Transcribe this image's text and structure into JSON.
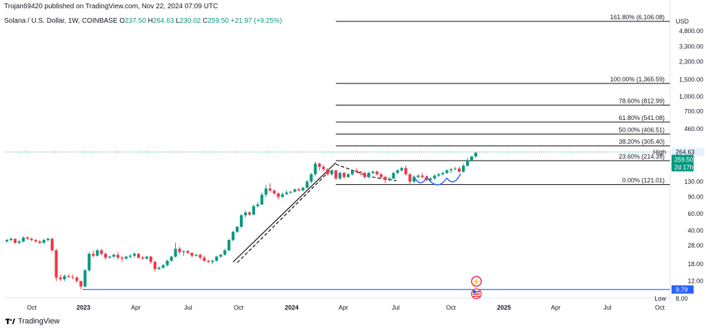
{
  "publisher": "Trojan69420 published on TradingView.com, Nov 22, 2024 07:09 UTC",
  "footer": {
    "brand": "TradingView"
  },
  "symbol": {
    "title": "Solana / U.S. Dollar, 1W, COINBASE",
    "o_label": "O",
    "o": "237.50",
    "h_label": "H",
    "h": "264.63",
    "l_label": "L",
    "l": "230.02",
    "c_label": "C",
    "c": "259.50",
    "change": "+21.97 (+9.25%)"
  },
  "colors": {
    "up": "#089981",
    "down": "#f23645",
    "fib": "#000000",
    "low_line": "#2962ff",
    "badge": "#089981"
  },
  "chart_data": {
    "type": "candlestick",
    "currency": "USD",
    "x_labels": [
      "Oct",
      "2023",
      "Apr",
      "Jul",
      "Oct",
      "2024",
      "Apr",
      "Jul",
      "Oct",
      "2025",
      "Apr",
      "Jul",
      "Oct"
    ],
    "y_ticks": [
      "4,800.00",
      "3,300.00",
      "2,300.00",
      "1,500.00",
      "1,000.00",
      "700.00",
      "460.00",
      "130.00",
      "90.00",
      "60.00",
      "40.00",
      "28.00",
      "18.00",
      "12.00",
      "8.00"
    ],
    "y_tick_values": [
      4800,
      3300,
      2300,
      1500,
      1000,
      700,
      460,
      130,
      90,
      60,
      40,
      28,
      18,
      12,
      8
    ],
    "log_scale": true,
    "ylim": [
      8,
      7000
    ],
    "fib_levels": [
      {
        "label": "161.80% (6,106.08)",
        "value": 6106.08
      },
      {
        "label": "100.00% (1,365.59)",
        "value": 1365.59
      },
      {
        "label": "78.60% (812.99)",
        "value": 812.99
      },
      {
        "label": "61.80% (541.08)",
        "value": 541.08
      },
      {
        "label": "50.00% (406.51)",
        "value": 406.51
      },
      {
        "label": "38.20% (305.40)",
        "value": 305.4
      },
      {
        "label": "23.60% (214.39)",
        "value": 214.39
      },
      {
        "label": "0.00% (121.01)",
        "value": 121.01
      }
    ],
    "high": {
      "label": "High",
      "value": 264.63,
      "display": "264.63"
    },
    "last": {
      "price": "259.50",
      "countdown": "2d 17h",
      "value": 259.5
    },
    "low": {
      "label": "Low",
      "value": 8.0,
      "line_value": 9.79,
      "line_label": "9.79"
    },
    "candles": [
      [
        31,
        33,
        30,
        32
      ],
      [
        32,
        34,
        31,
        33
      ],
      [
        33,
        33,
        29,
        30
      ],
      [
        30,
        32,
        29,
        31
      ],
      [
        31,
        35,
        30,
        34
      ],
      [
        34,
        35,
        32,
        33
      ],
      [
        33,
        34,
        31,
        32
      ],
      [
        32,
        33,
        30,
        31
      ],
      [
        31,
        32,
        29,
        30
      ],
      [
        30,
        33,
        29,
        32
      ],
      [
        32,
        34,
        31,
        33
      ],
      [
        33,
        34,
        24,
        25
      ],
      [
        25,
        26,
        12,
        13
      ],
      [
        13,
        14,
        12,
        12.5
      ],
      [
        12.5,
        14,
        12,
        13.5
      ],
      [
        13.5,
        14,
        13,
        13.2
      ],
      [
        13.2,
        14,
        12.5,
        13
      ],
      [
        13,
        13.5,
        11.5,
        12
      ],
      [
        12,
        12,
        9.8,
        10.5
      ],
      [
        10.5,
        16,
        10.3,
        15.5
      ],
      [
        15.5,
        24,
        15,
        23
      ],
      [
        23,
        25,
        21,
        22
      ],
      [
        22,
        26,
        21.5,
        25
      ],
      [
        25,
        26,
        22,
        23
      ],
      [
        23,
        24,
        20,
        21
      ],
      [
        21,
        22,
        20.5,
        21.5
      ],
      [
        21.5,
        23,
        21,
        22.5
      ],
      [
        22.5,
        24,
        20,
        21
      ],
      [
        21,
        22,
        19,
        20.5
      ],
      [
        20.5,
        22,
        20,
        21.5
      ],
      [
        21.5,
        23,
        20.5,
        22
      ],
      [
        22,
        24,
        21,
        23
      ],
      [
        23,
        23.5,
        20.5,
        21
      ],
      [
        21,
        22,
        20,
        20.5
      ],
      [
        20.5,
        22,
        20,
        21.5
      ],
      [
        21.5,
        22,
        18,
        19
      ],
      [
        19,
        19.5,
        15,
        16
      ],
      [
        16,
        17,
        15.5,
        16.5
      ],
      [
        16.5,
        18,
        16,
        17.5
      ],
      [
        17.5,
        20,
        17,
        19.5
      ],
      [
        19.5,
        22,
        19,
        21.5
      ],
      [
        21.5,
        30,
        21,
        26
      ],
      [
        26,
        27,
        23,
        24
      ],
      [
        24,
        25,
        22,
        24.5
      ],
      [
        24.5,
        25.5,
        23,
        23.5
      ],
      [
        23.5,
        24,
        21,
        22
      ],
      [
        22,
        23,
        21.5,
        22.5
      ],
      [
        22.5,
        23,
        20,
        21
      ],
      [
        21,
        22,
        19,
        19.5
      ],
      [
        19.5,
        20,
        18.5,
        19
      ],
      [
        19,
        20,
        18,
        19.5
      ],
      [
        19.5,
        22,
        19,
        21.5
      ],
      [
        21.5,
        23,
        21,
        22.5
      ],
      [
        22.5,
        26,
        22,
        25
      ],
      [
        25,
        33,
        24.5,
        32
      ],
      [
        32,
        40,
        31,
        39
      ],
      [
        39,
        45,
        38,
        44
      ],
      [
        44,
        60,
        43,
        58
      ],
      [
        58,
        65,
        55,
        62
      ],
      [
        62,
        64,
        57,
        59
      ],
      [
        59,
        75,
        58,
        72
      ],
      [
        72,
        80,
        70,
        75
      ],
      [
        75,
        100,
        74,
        95
      ],
      [
        95,
        120,
        90,
        110
      ],
      [
        110,
        125,
        100,
        105
      ],
      [
        105,
        108,
        95,
        98
      ],
      [
        98,
        100,
        85,
        90
      ],
      [
        90,
        100,
        88,
        96
      ],
      [
        96,
        105,
        95,
        100
      ],
      [
        100,
        104,
        97,
        102
      ],
      [
        102,
        110,
        100,
        108
      ],
      [
        108,
        112,
        103,
        105
      ],
      [
        105,
        115,
        104,
        112
      ],
      [
        112,
        135,
        110,
        130
      ],
      [
        130,
        160,
        125,
        155
      ],
      [
        155,
        210,
        150,
        200
      ],
      [
        200,
        205,
        170,
        185
      ],
      [
        185,
        195,
        165,
        175
      ],
      [
        175,
        180,
        150,
        155
      ],
      [
        155,
        175,
        150,
        170
      ],
      [
        170,
        172,
        135,
        140
      ],
      [
        140,
        165,
        135,
        160
      ],
      [
        160,
        165,
        140,
        145
      ],
      [
        145,
        160,
        142,
        155
      ],
      [
        155,
        175,
        150,
        170
      ],
      [
        170,
        180,
        160,
        165
      ],
      [
        165,
        168,
        150,
        160
      ],
      [
        160,
        165,
        140,
        145
      ],
      [
        145,
        165,
        140,
        160
      ],
      [
        160,
        170,
        155,
        165
      ],
      [
        165,
        170,
        150,
        155
      ],
      [
        155,
        160,
        140,
        145
      ],
      [
        145,
        150,
        125,
        135
      ],
      [
        135,
        145,
        130,
        140
      ],
      [
        140,
        165,
        138,
        160
      ],
      [
        160,
        175,
        155,
        170
      ],
      [
        170,
        185,
        165,
        180
      ],
      [
        180,
        190,
        150,
        155
      ],
      [
        155,
        160,
        120,
        130
      ],
      [
        130,
        150,
        125,
        145
      ],
      [
        145,
        155,
        140,
        150
      ],
      [
        150,
        160,
        140,
        145
      ],
      [
        145,
        150,
        130,
        135
      ],
      [
        135,
        145,
        130,
        140
      ],
      [
        140,
        155,
        135,
        150
      ],
      [
        150,
        160,
        145,
        155
      ],
      [
        155,
        165,
        150,
        160
      ],
      [
        160,
        175,
        155,
        170
      ],
      [
        170,
        180,
        160,
        175
      ],
      [
        175,
        185,
        170,
        178
      ],
      [
        178,
        185,
        160,
        165
      ],
      [
        165,
        200,
        160,
        190
      ],
      [
        190,
        230,
        185,
        215
      ],
      [
        215,
        240,
        210,
        237.5
      ],
      [
        237.5,
        264.63,
        230.02,
        259.5
      ]
    ]
  }
}
